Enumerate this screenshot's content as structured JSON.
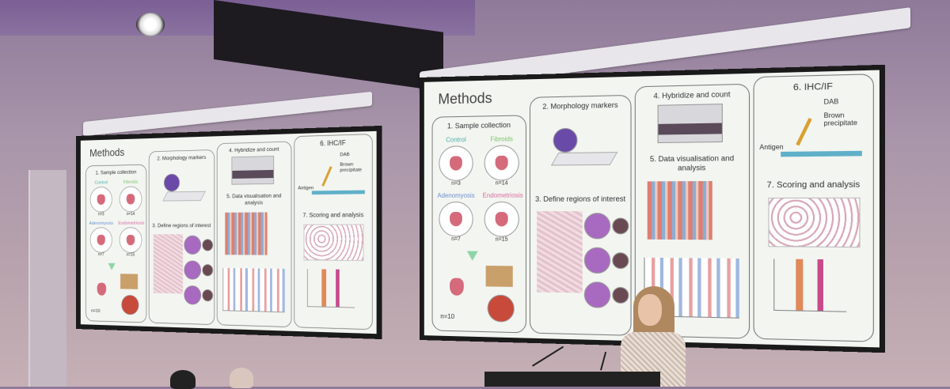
{
  "slide": {
    "title": "Methods",
    "sample_collection": {
      "heading": "1. Sample collection",
      "groups": [
        {
          "label": "Control",
          "count": "n=3"
        },
        {
          "label": "Fibroids",
          "count": "n=14"
        },
        {
          "label": "Adenomyosis",
          "count": "n=7"
        },
        {
          "label": "Endometriosis",
          "count": "n=15"
        }
      ],
      "total": "n=10"
    },
    "morphology": {
      "heading": "2. Morphology markers"
    },
    "regions": {
      "heading": "3. Define regions of interest"
    },
    "hybridize": {
      "heading": "4. Hybridize and count"
    },
    "visualisation": {
      "heading": "5. Data visualisation and analysis"
    },
    "ihc": {
      "heading": "6. IHC/IF",
      "dab": "DAB",
      "precipitate": "Brown precipitate",
      "antigen": "Antigen"
    },
    "scoring": {
      "heading": "7. Scoring and analysis"
    }
  }
}
